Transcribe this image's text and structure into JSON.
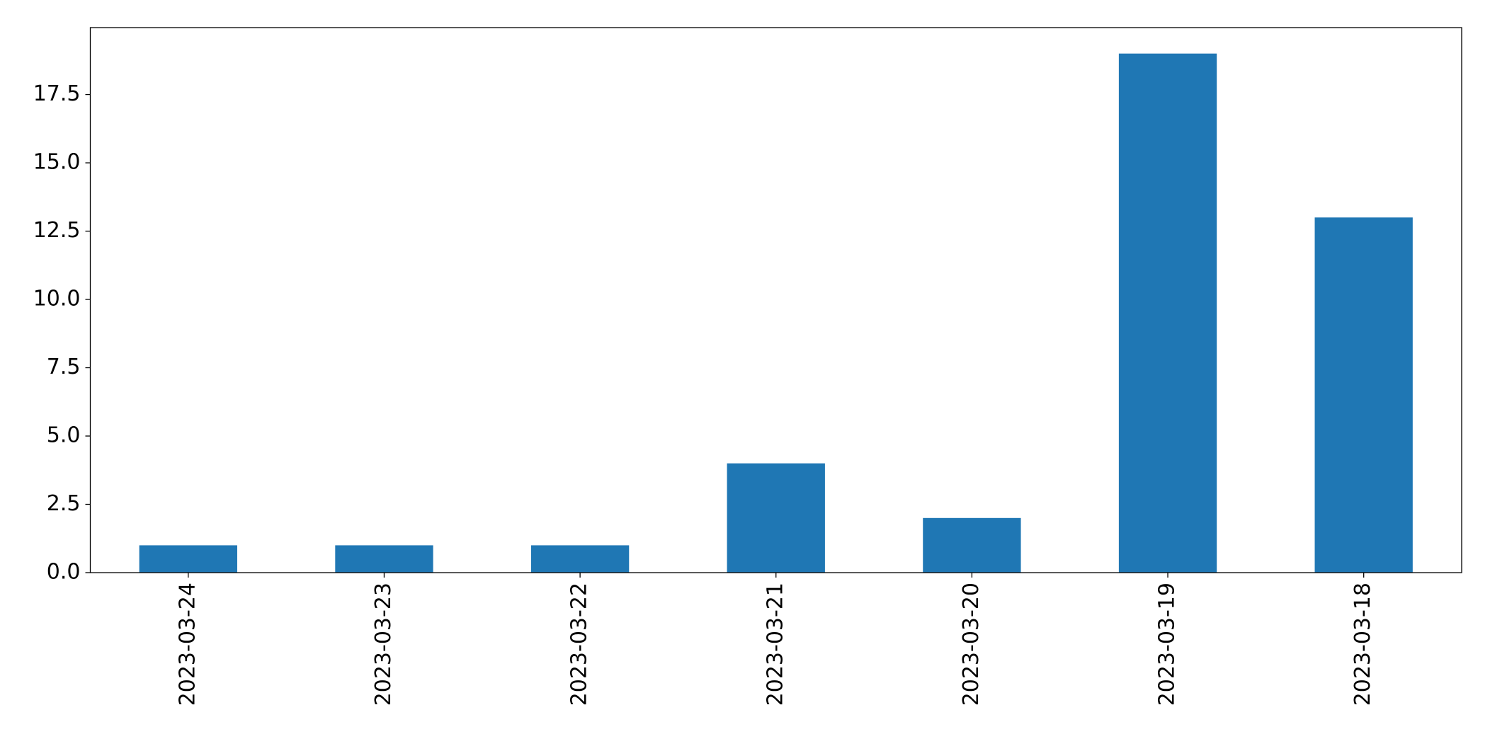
{
  "chart_data": {
    "type": "bar",
    "categories": [
      "2023-03-24",
      "2023-03-23",
      "2023-03-22",
      "2023-03-21",
      "2023-03-20",
      "2023-03-19",
      "2023-03-18"
    ],
    "values": [
      1,
      1,
      1,
      4,
      2,
      19,
      13
    ],
    "color": "#1f77b4",
    "ylim": [
      0,
      19.95
    ],
    "yticks": [
      {
        "value": 0,
        "label": "0.0"
      },
      2.5,
      {
        "value": 5,
        "label": "5.0"
      },
      7.5,
      {
        "value": 10,
        "label": "10.0"
      },
      12.5,
      {
        "value": 15,
        "label": "15.0"
      },
      17.5
    ],
    "grid": false
  }
}
